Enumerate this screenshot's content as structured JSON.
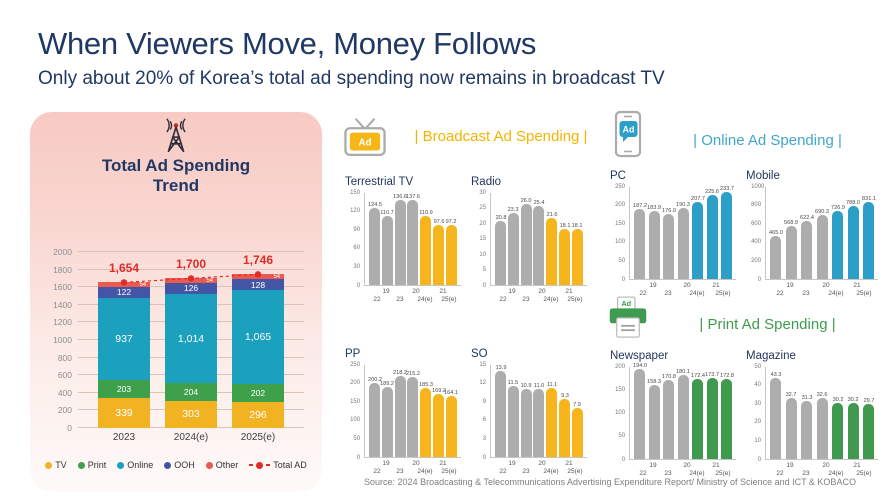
{
  "header": {
    "title": "When Viewers Move, Money Follows",
    "subtitle": "Only about 20% of Korea’s total ad spending now remains in broadcast TV"
  },
  "left_panel": {
    "legend": [
      {
        "label": "TV",
        "key": "tv"
      },
      {
        "label": "Print",
        "key": "print"
      },
      {
        "label": "Online",
        "key": "online"
      },
      {
        "label": "OOH",
        "key": "ooh"
      },
      {
        "label": "Other",
        "key": "other"
      },
      {
        "label": "Total AD",
        "key": "total",
        "marker": "dash-dot"
      }
    ]
  },
  "sections": {
    "broadcast": {
      "label": "| Broadcast Ad Spending |",
      "color": "#F5B301",
      "accent": "#F6B51C",
      "icon": "tv-ad-icon"
    },
    "online": {
      "label": "| Online Ad Spending |",
      "color": "#41A6CA",
      "accent": "#2C9FC9",
      "icon": "phone-ad-icon"
    },
    "print": {
      "label": "| Print Ad Spending |",
      "color": "#3E9B4F",
      "accent": "#3F9A4E",
      "icon": "printer-ad-icon"
    }
  },
  "icon_ad_label": "Ad",
  "mini_x_axis": {
    "upper": [
      {
        "text": "19",
        "pos": 22
      },
      {
        "text": "20",
        "pos": 53
      },
      {
        "text": "21",
        "pos": 80
      }
    ],
    "lower": [
      {
        "text": "22",
        "pos": 13
      },
      {
        "text": "23",
        "pos": 36
      },
      {
        "text": "24(e)",
        "pos": 62
      },
      {
        "text": "25(e)",
        "pos": 86
      }
    ]
  },
  "mini_x_categories": [
    "19",
    "20",
    "21",
    "22",
    "23",
    "24(e)",
    "25(e)"
  ],
  "chart_data": [
    {
      "id": "total-ad-trend",
      "type": "stacked-bar",
      "title": "Total Ad Spending Trend",
      "categories": [
        "2023",
        "2024(e)",
        "2025(e)"
      ],
      "series": [
        {
          "name": "TV",
          "key": "tv",
          "values": [
            339,
            303,
            296
          ]
        },
        {
          "name": "Print",
          "key": "print",
          "values": [
            203,
            204,
            202
          ]
        },
        {
          "name": "Online",
          "key": "online",
          "values": [
            937,
            1014,
            1065
          ]
        },
        {
          "name": "OOH",
          "key": "ooh",
          "values": [
            122,
            126,
            128
          ]
        },
        {
          "name": "Other",
          "key": "other",
          "values": [
            54,
            54,
            54
          ]
        }
      ],
      "totals": {
        "name": "Total AD",
        "labels": [
          "1,654",
          "1,700",
          "1,746"
        ],
        "values": [
          1654,
          1700,
          1746
        ]
      },
      "ylim": [
        0,
        2000
      ],
      "ytick_step": 200,
      "legend_position": "bottom",
      "grid": true
    },
    {
      "id": "terrestrial-tv",
      "type": "bar",
      "title": "Terrestrial TV",
      "section": "broadcast",
      "values": [
        124.5,
        110.7,
        136.6,
        137.6,
        110.9,
        97.6,
        97.2
      ],
      "ylim": [
        0,
        150
      ],
      "yticks": [
        0,
        30,
        60,
        90,
        120,
        150
      ],
      "highlight_from": 4
    },
    {
      "id": "radio",
      "type": "bar",
      "title": "Radio",
      "section": "broadcast",
      "values": [
        20.8,
        23.3,
        26.0,
        25.4,
        21.6,
        18.1,
        18.1
      ],
      "ylim": [
        0,
        30
      ],
      "yticks": [
        0,
        5,
        10,
        15,
        20,
        25,
        30
      ],
      "highlight_from": 4
    },
    {
      "id": "pc",
      "type": "bar",
      "title": "PC",
      "section": "online",
      "values": [
        187.2,
        183.9,
        176.0,
        190.3,
        207.7,
        225.6,
        233.7
      ],
      "ylim": [
        0,
        250
      ],
      "yticks": [
        0,
        50,
        100,
        150,
        200,
        250
      ],
      "highlight_from": 4
    },
    {
      "id": "mobile",
      "type": "bar",
      "title": "Mobile",
      "section": "online",
      "values": [
        465.0,
        568.9,
        622.4,
        690.3,
        726.9,
        788.0,
        831.1
      ],
      "ylim": [
        0,
        1000
      ],
      "yticks": [
        0,
        200,
        400,
        600,
        800,
        1000
      ],
      "highlight_from": 4
    },
    {
      "id": "pp",
      "type": "bar",
      "title": "PP",
      "section": "broadcast",
      "values": [
        200.2,
        189.2,
        218.2,
        215.2,
        185.3,
        169.2,
        164.1
      ],
      "ylim": [
        0,
        250
      ],
      "yticks": [
        0,
        50,
        100,
        150,
        200,
        250
      ],
      "highlight_from": 4
    },
    {
      "id": "so",
      "type": "bar",
      "title": "SO",
      "section": "broadcast",
      "values": [
        13.9,
        11.5,
        10.9,
        11.0,
        11.1,
        9.3,
        7.9
      ],
      "ylim": [
        0,
        15
      ],
      "yticks": [
        0,
        3,
        6,
        9,
        12,
        15
      ],
      "highlight_from": 4
    },
    {
      "id": "newspaper",
      "type": "bar",
      "title": "Newspaper",
      "section": "print",
      "values": [
        194.0,
        158.3,
        170.8,
        180.1,
        172.4,
        173.7,
        172.8
      ],
      "ylim": [
        0,
        200
      ],
      "yticks": [
        0,
        50,
        100,
        150,
        200
      ],
      "highlight_from": 4
    },
    {
      "id": "magazine",
      "type": "bar",
      "title": "Magazine",
      "section": "print",
      "values": [
        43.3,
        32.7,
        31.3,
        32.6,
        30.2,
        30.2,
        29.7
      ],
      "ylim": [
        0,
        50
      ],
      "yticks": [
        0,
        10,
        20,
        30,
        40,
        50
      ],
      "highlight_from": 4
    }
  ],
  "colors": {
    "navy_text": "#203864",
    "gray_bar": "#ADADAD",
    "tv": "#F2B323",
    "print": "#3FA04C",
    "online": "#1BA0BE",
    "ooh": "#4355A5",
    "other": "#EC5A4F",
    "total": "#DD2C2A",
    "total_line": "#DD2C2A",
    "panel_pink_top": "#F8CAC3",
    "panel_pink_bottom": "#FEFAF9"
  },
  "source": "Source:  2024 Broadcasting & Telecommunications Advertising Expenditure Report/ Ministry of Science and ICT & KOBACO"
}
